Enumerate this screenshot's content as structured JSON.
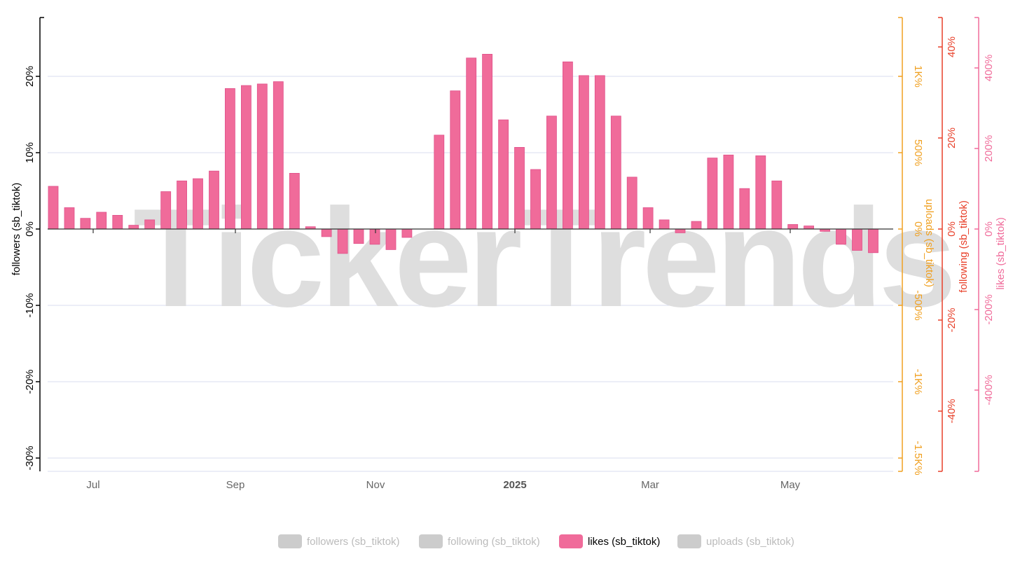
{
  "watermark": "TickerTrends",
  "colors": {
    "followers": "#000000",
    "uploads": "#f0a020",
    "following": "#e8402a",
    "likes": "#f06b9a",
    "bar": "#f06b9a",
    "bar_stroke": "#e0508a",
    "grid": "#d9deef",
    "legend_inactive": "#cccccc",
    "legend_inactive_text": "#bbbbbb"
  },
  "chart_data": {
    "type": "bar",
    "x_ticks": [
      {
        "label": "Jul",
        "bold": false
      },
      {
        "label": "Sep",
        "bold": false
      },
      {
        "label": "Nov",
        "bold": false
      },
      {
        "label": "2025",
        "bold": true
      },
      {
        "label": "Mar",
        "bold": false
      },
      {
        "label": "May",
        "bold": false
      }
    ],
    "axes": {
      "followers": {
        "label": "followers (sb_tiktok)",
        "ticks": [
          "20%",
          "10%",
          "0%",
          "-10%",
          "-20%",
          "-30%"
        ],
        "range": [
          -31.5,
          28
        ]
      },
      "uploads": {
        "label": "uploads (sb_tiktok)",
        "ticks": [
          "1K%",
          "500%",
          "0%",
          "-500%",
          "-1K%",
          "-1.5K%"
        ],
        "range": [
          -1575,
          1400
        ]
      },
      "following": {
        "label": "following (sb_tiktok)",
        "ticks": [
          "40%",
          "20%",
          "0%",
          "-20%",
          "-40%"
        ],
        "range": [
          -48,
          42
        ]
      },
      "likes": {
        "label": "likes (sb_tiktok)",
        "ticks": [
          "400%",
          "200%",
          "0%",
          "-200%",
          "-400%"
        ],
        "range": [
          -530,
          470
        ]
      }
    },
    "series": [
      {
        "name": "likes (sb_tiktok)",
        "axis": "followers",
        "values": [
          5.6,
          2.8,
          1.4,
          2.2,
          1.8,
          0.5,
          1.2,
          4.9,
          6.3,
          6.6,
          7.6,
          18.4,
          18.8,
          19.0,
          19.3,
          7.3,
          0.3,
          -1.0,
          -3.2,
          -1.9,
          -2.0,
          -2.7,
          -1.1,
          0,
          12.3,
          18.1,
          22.4,
          22.9,
          14.3,
          10.7,
          7.8,
          14.8,
          21.9,
          20.1,
          20.1,
          14.8,
          6.8,
          2.8,
          1.2,
          -0.5,
          1.0,
          9.3,
          9.7,
          5.3,
          9.6,
          6.3,
          0.6,
          0.4,
          -0.3,
          -2.0,
          -2.8,
          -3.1
        ]
      }
    ],
    "grid": true,
    "legend_position": "bottom-center"
  },
  "legend": [
    {
      "label": "followers (sb_tiktok)",
      "active": false
    },
    {
      "label": "following (sb_tiktok)",
      "active": false
    },
    {
      "label": "likes (sb_tiktok)",
      "active": true
    },
    {
      "label": "uploads (sb_tiktok)",
      "active": false
    }
  ]
}
